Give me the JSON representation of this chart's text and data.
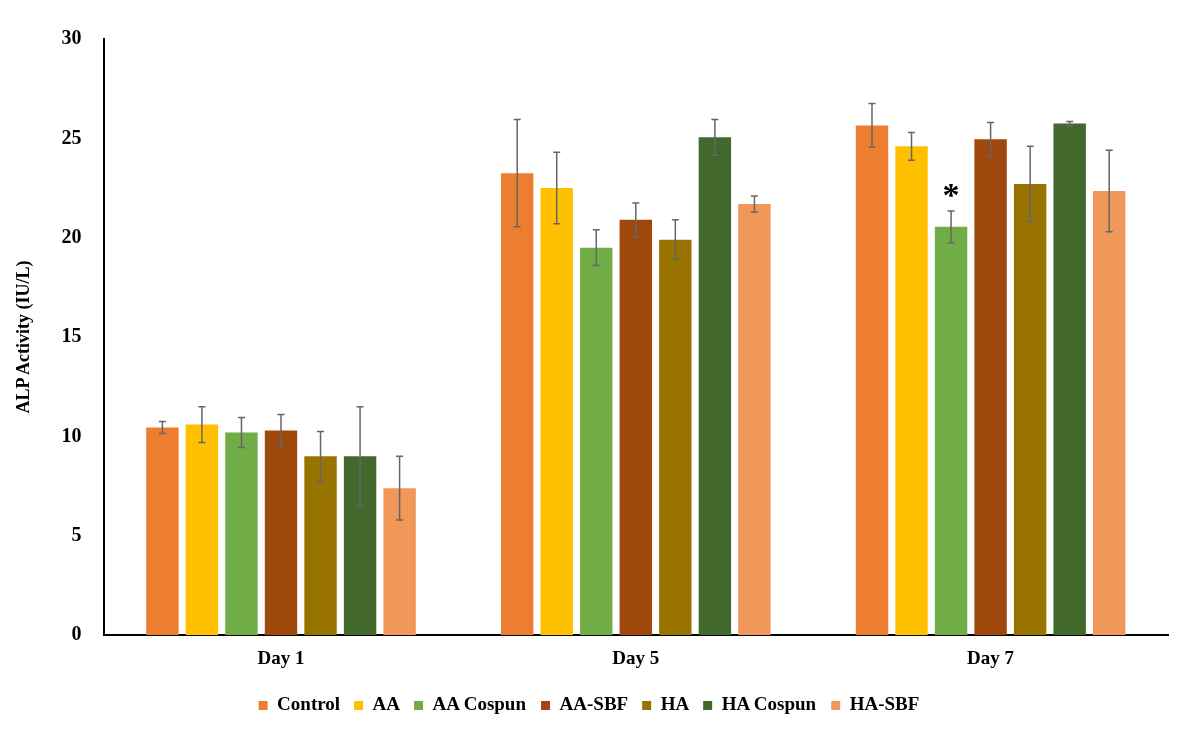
{
  "chart_data": {
    "type": "bar",
    "ylabel": "ALP Activity (IU/L)",
    "categories": [
      "Day 1",
      "Day 5",
      "Day 7"
    ],
    "series": [
      {
        "name": "Control",
        "color": "#ed7d31",
        "values": [
          10.45,
          23.25,
          25.65
        ],
        "errors": [
          0.3,
          2.7,
          1.1
        ]
      },
      {
        "name": "AA",
        "color": "#ffc000",
        "values": [
          10.6,
          22.5,
          24.6
        ],
        "errors": [
          0.9,
          1.8,
          0.7
        ]
      },
      {
        "name": "AA Cospun",
        "color": "#70ad47",
        "values": [
          10.2,
          19.5,
          20.55
        ],
        "errors": [
          0.75,
          0.9,
          0.8
        ]
      },
      {
        "name": "AA-SBF",
        "color": "#9e480e",
        "values": [
          10.3,
          20.9,
          24.95
        ],
        "errors": [
          0.8,
          0.85,
          0.85
        ]
      },
      {
        "name": "HA",
        "color": "#997300",
        "values": [
          9.0,
          19.9,
          22.7
        ],
        "errors": [
          1.25,
          1.0,
          1.9
        ]
      },
      {
        "name": "HA Cospun",
        "color": "#43682b",
        "values": [
          9.0,
          25.05,
          25.75
        ],
        "errors": [
          2.5,
          0.9,
          0.1
        ]
      },
      {
        "name": "HA-SBF",
        "color": "#f1975a",
        "values": [
          7.4,
          21.7,
          22.35
        ],
        "errors": [
          1.6,
          0.4,
          2.05
        ]
      }
    ],
    "ylim": [
      0,
      30
    ],
    "yticks": [
      0,
      5,
      10,
      15,
      20,
      25,
      30
    ],
    "grid": false,
    "legend": "bottom",
    "annotations": [
      "*"
    ]
  }
}
